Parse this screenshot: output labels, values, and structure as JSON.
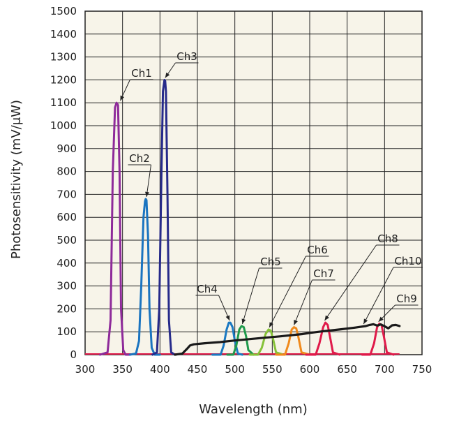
{
  "chart_data": {
    "type": "line",
    "title": "",
    "xlabel": "Wavelength (nm)",
    "ylabel": "Photosensitivity (mV/μW)",
    "xlim": [
      300,
      750
    ],
    "ylim": [
      0,
      1500
    ],
    "x_ticks": [
      300,
      350,
      400,
      450,
      500,
      550,
      600,
      650,
      700,
      750
    ],
    "y_ticks": [
      0,
      100,
      200,
      300,
      400,
      500,
      600,
      700,
      800,
      900,
      1000,
      1100,
      1200,
      1300,
      1400,
      1500
    ],
    "grid": true,
    "colors": {
      "Ch1": "#8e2a9a",
      "Ch2": "#1a74c0",
      "Ch3": "#262a8a",
      "Ch4": "#1a78c2",
      "Ch5": "#1f9a4c",
      "Ch6": "#86c238",
      "Ch7": "#f08a1c",
      "Ch8": "#e01a4a",
      "Ch9": "#e01a4a",
      "Ch10": "#1a1a1a",
      "background": "#f7f4e9",
      "grid": "#222222"
    },
    "series": [
      {
        "name": "Ch1",
        "x": [
          320,
          330,
          334,
          337,
          340,
          342,
          344,
          346,
          348,
          351,
          354,
          360
        ],
        "y": [
          0,
          10,
          150,
          800,
          1080,
          1100,
          1090,
          800,
          200,
          20,
          0,
          0
        ]
      },
      {
        "name": "Ch2",
        "x": [
          360,
          368,
          372,
          375,
          378,
          380,
          381,
          382,
          384,
          386,
          389,
          393,
          400
        ],
        "y": [
          0,
          5,
          60,
          300,
          600,
          670,
          680,
          675,
          520,
          200,
          30,
          0,
          0
        ]
      },
      {
        "name": "Ch3",
        "x": [
          390,
          396,
          399,
          402,
          404,
          406,
          407,
          408,
          410,
          412,
          415,
          420
        ],
        "y": [
          0,
          10,
          200,
          800,
          1150,
          1200,
          1195,
          1150,
          700,
          150,
          10,
          0
        ]
      },
      {
        "name": "Ch4",
        "x": [
          470,
          481,
          485,
          489,
          492,
          494,
          497,
          500,
          504,
          510
        ],
        "y": [
          0,
          0,
          40,
          110,
          140,
          140,
          120,
          60,
          5,
          0
        ]
      },
      {
        "name": "Ch5",
        "x": [
          490,
          498,
          502,
          506,
          509,
          512,
          515,
          518,
          525
        ],
        "y": [
          0,
          0,
          40,
          110,
          125,
          120,
          80,
          20,
          0
        ]
      },
      {
        "name": "Ch6",
        "x": [
          520,
          531,
          536,
          541,
          545,
          548,
          551,
          555,
          565
        ],
        "y": [
          0,
          0,
          30,
          90,
          110,
          105,
          70,
          10,
          0
        ]
      },
      {
        "name": "Ch7",
        "x": [
          555,
          567,
          572,
          576,
          579,
          582,
          585,
          589,
          600
        ],
        "y": [
          0,
          0,
          50,
          110,
          120,
          115,
          75,
          10,
          0
        ]
      },
      {
        "name": "Ch8",
        "x": [
          595,
          608,
          613,
          618,
          621,
          624,
          627,
          631,
          640
        ],
        "y": [
          0,
          0,
          50,
          120,
          140,
          130,
          80,
          10,
          0
        ]
      },
      {
        "name": "Ch9",
        "x": [
          670,
          681,
          686,
          690,
          693,
          696,
          699,
          703,
          712
        ],
        "y": [
          0,
          0,
          50,
          120,
          135,
          130,
          80,
          10,
          0
        ]
      },
      {
        "name": "Ch10",
        "x": [
          420,
          430,
          436,
          440,
          445,
          460,
          480,
          500,
          520,
          540,
          560,
          575,
          590,
          600,
          620,
          640,
          660,
          675,
          680,
          685,
          690,
          695,
          700,
          705,
          710,
          715,
          720
        ],
        "y": [
          0,
          5,
          25,
          40,
          45,
          50,
          55,
          62,
          68,
          74,
          80,
          85,
          90,
          95,
          103,
          110,
          118,
          125,
          130,
          133,
          127,
          132,
          124,
          115,
          128,
          130,
          125
        ]
      }
    ],
    "annotations": [
      {
        "text": "Ch1",
        "x": 347,
        "y": 1100
      },
      {
        "text": "Ch2",
        "x": 382,
        "y": 680
      },
      {
        "text": "Ch3",
        "x": 407,
        "y": 1200
      },
      {
        "text": "Ch4",
        "x": 493,
        "y": 140
      },
      {
        "text": "Ch5",
        "x": 510,
        "y": 125
      },
      {
        "text": "Ch6",
        "x": 546,
        "y": 110
      },
      {
        "text": "Ch7",
        "x": 579,
        "y": 120
      },
      {
        "text": "Ch8",
        "x": 620,
        "y": 140
      },
      {
        "text": "Ch9",
        "x": 692,
        "y": 135
      },
      {
        "text": "Ch10",
        "x": 672,
        "y": 125
      }
    ]
  }
}
